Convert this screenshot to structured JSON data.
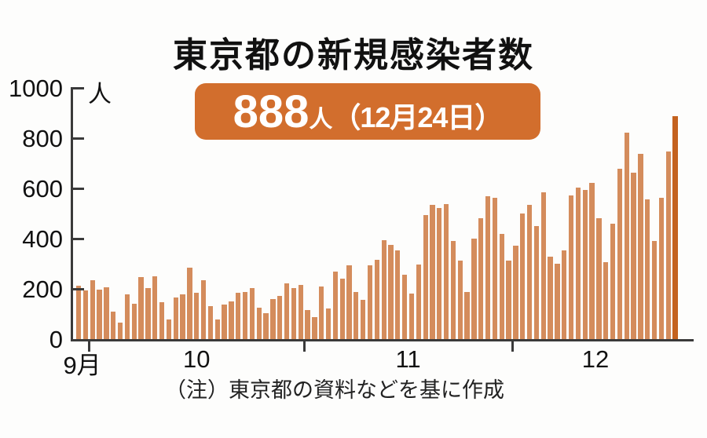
{
  "title": "東京都の新規感染者数",
  "badge": {
    "value": "888",
    "suffix": "人",
    "date": "（12月24日）"
  },
  "note": "（注）東京都の資料などを基に作成",
  "colors": {
    "badge_bg": "#d26e2d",
    "badge_text": "#ffffff",
    "axis": "#3a3a3a",
    "bar": "#d48c5c",
    "highlight_bar": "#c4621f"
  },
  "chart_data": {
    "type": "bar",
    "title": "東京都の新規感染者数",
    "ylabel": "人",
    "ylim": [
      0,
      1000
    ],
    "y_ticks": [
      0,
      200,
      400,
      600,
      800,
      1000
    ],
    "grid": false,
    "legend": "none",
    "x_month_labels": [
      "9月",
      "10",
      "11",
      "12"
    ],
    "highlight": {
      "value": 888,
      "label": "888人（12月24日）",
      "position": "last-bar"
    },
    "series": [
      {
        "month": "9月",
        "values": [
          212,
          194
        ]
      },
      {
        "month": "10",
        "values": [
          235,
          196,
          207,
          108,
          66,
          177,
          142,
          248,
          203,
          249,
          146,
          78,
          166,
          177,
          284,
          184,
          235,
          132,
          78,
          139,
          150,
          185,
          186,
          203,
          124,
          102,
          158,
          171,
          221,
          204,
          215
        ]
      },
      {
        "month": "11",
        "values": [
          116,
          87,
          209,
          122,
          269,
          242,
          294,
          189,
          157,
          293,
          317,
          393,
          374,
          352,
          255,
          180,
          298,
          493,
          534,
          522,
          539,
          391,
          314,
          186,
          401,
          481,
          570,
          561,
          418,
          311
        ]
      },
      {
        "month": "12",
        "values": [
          372,
          500,
          533,
          449,
          584,
          327,
          299,
          352,
          572,
          602,
          595,
          621,
          480,
          305,
          460,
          678,
          822,
          664,
          736,
          556,
          392,
          563,
          748,
          888
        ]
      }
    ]
  }
}
